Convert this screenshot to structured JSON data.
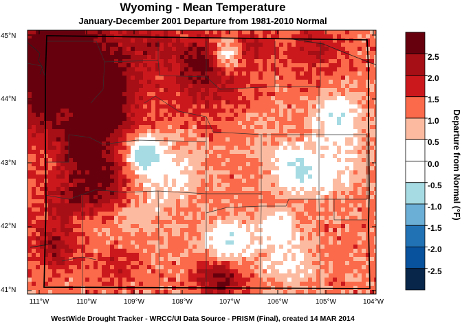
{
  "title": "Wyoming - Mean Temperature",
  "subtitle": "January-December 2001  Departure from 1981-2010 Normal",
  "footer": "WestWide Drought Tracker - WRCC/UI  Data Source - PRISM (Final), created 14 MAR 2014",
  "map": {
    "latitude_labels": [
      "45°N",
      "44°N",
      "43°N",
      "42°N",
      "41°N"
    ],
    "longitude_labels": [
      "111°W",
      "110°W",
      "109°W",
      "108°W",
      "107°W",
      "106°W",
      "105°W",
      "104°W"
    ]
  },
  "colorbar": {
    "title": "Departure from Normal (°F)",
    "tick_labels": [
      "2.5",
      "2.0",
      "1.5",
      "1.0",
      "0.5",
      "0.0",
      "-0.5",
      "-1.0",
      "-1.5",
      "-2.0",
      "-2.5"
    ],
    "bins": [
      {
        "range": "> 2.5",
        "color": "#67000d"
      },
      {
        "range": "2.0 to 2.5",
        "color": "#a50f15"
      },
      {
        "range": "1.5 to 2.0",
        "color": "#cb181d"
      },
      {
        "range": "1.0 to 1.5",
        "color": "#fb6a4a"
      },
      {
        "range": "0.5 to 1.0",
        "color": "#fcbba1"
      },
      {
        "range": "0.0 to 0.5",
        "color": "#ffffff"
      },
      {
        "range": "-0.5 to 0.0",
        "color": "#ffffff"
      },
      {
        "range": "-1.0 to -0.5",
        "color": "#a6dbe3"
      },
      {
        "range": "-1.5 to -1.0",
        "color": "#6baed6"
      },
      {
        "range": "-2.0 to -1.5",
        "color": "#2171b5"
      },
      {
        "range": "-2.5 to -2.0",
        "color": "#08519c"
      },
      {
        "range": "< -2.5",
        "color": "#08264a"
      }
    ]
  }
}
